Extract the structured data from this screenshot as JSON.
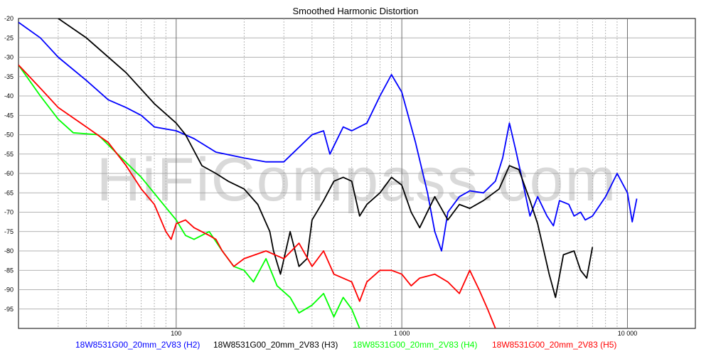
{
  "chart_data": {
    "type": "line",
    "title": "Smoothed Harmonic Distortion",
    "x_scale": "log",
    "xlim": [
      20,
      20000
    ],
    "ylim": [
      -100,
      -20
    ],
    "grid": true,
    "legend_position": "bottom",
    "watermark": "HiFiCompass.com",
    "x_tick_labels": [
      {
        "x": 100,
        "label": "100"
      },
      {
        "x": 1000,
        "label": "1 000"
      },
      {
        "x": 10000,
        "label": "10 000"
      }
    ],
    "y_ticks": [
      -20,
      -25,
      -30,
      -35,
      -40,
      -45,
      -50,
      -55,
      -60,
      -65,
      -70,
      -75,
      -80,
      -85,
      -90,
      -95
    ],
    "series": [
      {
        "name": "18W8531G00_20mm_2V83 (H2)",
        "color": "#0000ff",
        "points": [
          [
            20,
            -21
          ],
          [
            25,
            -25
          ],
          [
            30,
            -30
          ],
          [
            40,
            -36
          ],
          [
            50,
            -41
          ],
          [
            60,
            -43
          ],
          [
            70,
            -45
          ],
          [
            80,
            -48
          ],
          [
            100,
            -49
          ],
          [
            120,
            -51
          ],
          [
            150,
            -54.5
          ],
          [
            200,
            -56
          ],
          [
            250,
            -57
          ],
          [
            300,
            -57
          ],
          [
            400,
            -50
          ],
          [
            450,
            -49
          ],
          [
            480,
            -55
          ],
          [
            550,
            -48
          ],
          [
            600,
            -49
          ],
          [
            700,
            -47
          ],
          [
            800,
            -40
          ],
          [
            900,
            -34.5
          ],
          [
            1000,
            -39
          ],
          [
            1150,
            -52
          ],
          [
            1300,
            -65
          ],
          [
            1400,
            -75
          ],
          [
            1500,
            -80
          ],
          [
            1600,
            -70
          ],
          [
            1800,
            -66
          ],
          [
            2000,
            -64.5
          ],
          [
            2300,
            -65
          ],
          [
            2600,
            -62
          ],
          [
            2800,
            -56
          ],
          [
            3000,
            -47
          ],
          [
            3200,
            -54
          ],
          [
            3400,
            -61
          ],
          [
            3700,
            -71
          ],
          [
            4000,
            -66
          ],
          [
            4400,
            -71
          ],
          [
            4700,
            -73.5
          ],
          [
            5000,
            -67
          ],
          [
            5500,
            -68
          ],
          [
            5800,
            -71
          ],
          [
            6200,
            -70
          ],
          [
            6500,
            -72
          ],
          [
            7000,
            -71
          ],
          [
            8000,
            -66
          ],
          [
            9000,
            -60
          ],
          [
            10000,
            -65
          ],
          [
            10500,
            -72.5
          ],
          [
            11000,
            -66.5
          ]
        ]
      },
      {
        "name": "18W8531G00_20mm_2V83 (H3)",
        "color": "#000000",
        "points": [
          [
            30,
            -20
          ],
          [
            40,
            -25
          ],
          [
            60,
            -34
          ],
          [
            80,
            -42
          ],
          [
            100,
            -47
          ],
          [
            110,
            -50
          ],
          [
            130,
            -58
          ],
          [
            150,
            -60
          ],
          [
            170,
            -62
          ],
          [
            200,
            -64
          ],
          [
            230,
            -68
          ],
          [
            260,
            -75
          ],
          [
            270,
            -80
          ],
          [
            290,
            -86
          ],
          [
            320,
            -75
          ],
          [
            350,
            -84
          ],
          [
            380,
            -82
          ],
          [
            400,
            -72
          ],
          [
            450,
            -67
          ],
          [
            500,
            -62
          ],
          [
            550,
            -61
          ],
          [
            600,
            -62
          ],
          [
            650,
            -71
          ],
          [
            700,
            -68
          ],
          [
            800,
            -65
          ],
          [
            900,
            -61
          ],
          [
            1000,
            -63
          ],
          [
            1100,
            -70
          ],
          [
            1200,
            -74
          ],
          [
            1400,
            -66
          ],
          [
            1600,
            -72
          ],
          [
            1800,
            -68
          ],
          [
            2000,
            -69
          ],
          [
            2300,
            -67
          ],
          [
            2700,
            -64
          ],
          [
            3000,
            -58
          ],
          [
            3300,
            -59
          ],
          [
            3700,
            -67
          ],
          [
            4000,
            -73
          ],
          [
            4500,
            -86
          ],
          [
            4800,
            -92
          ],
          [
            5200,
            -81
          ],
          [
            5800,
            -80
          ],
          [
            6200,
            -85
          ],
          [
            6600,
            -87
          ],
          [
            7000,
            -79
          ]
        ]
      },
      {
        "name": "18W8531G00_20mm_2V83 (H4)",
        "color": "#00ff00",
        "points": [
          [
            20,
            -32
          ],
          [
            25,
            -40
          ],
          [
            30,
            -46
          ],
          [
            35,
            -49.5
          ],
          [
            45,
            -50
          ],
          [
            55,
            -55
          ],
          [
            70,
            -61
          ],
          [
            85,
            -67
          ],
          [
            100,
            -72
          ],
          [
            110,
            -76
          ],
          [
            120,
            -77
          ],
          [
            140,
            -75
          ],
          [
            160,
            -80
          ],
          [
            180,
            -84
          ],
          [
            200,
            -85
          ],
          [
            220,
            -88
          ],
          [
            250,
            -82
          ],
          [
            280,
            -89
          ],
          [
            320,
            -92
          ],
          [
            350,
            -96
          ],
          [
            400,
            -94
          ],
          [
            450,
            -91
          ],
          [
            500,
            -97
          ],
          [
            550,
            -92
          ],
          [
            600,
            -95
          ],
          [
            650,
            -100
          ]
        ]
      },
      {
        "name": "18W8531G00_20mm_2V83 (H5)",
        "color": "#ff0000",
        "points": [
          [
            20,
            -32
          ],
          [
            25,
            -38
          ],
          [
            30,
            -43
          ],
          [
            40,
            -48
          ],
          [
            50,
            -52
          ],
          [
            60,
            -58
          ],
          [
            70,
            -64
          ],
          [
            80,
            -68
          ],
          [
            90,
            -75
          ],
          [
            95,
            -77
          ],
          [
            100,
            -73
          ],
          [
            110,
            -72
          ],
          [
            120,
            -74
          ],
          [
            140,
            -76
          ],
          [
            150,
            -77
          ],
          [
            160,
            -80
          ],
          [
            180,
            -84
          ],
          [
            200,
            -82
          ],
          [
            250,
            -80
          ],
          [
            300,
            -82
          ],
          [
            350,
            -78
          ],
          [
            400,
            -84
          ],
          [
            450,
            -80
          ],
          [
            500,
            -86
          ],
          [
            600,
            -88
          ],
          [
            650,
            -93
          ],
          [
            700,
            -88
          ],
          [
            800,
            -85
          ],
          [
            900,
            -85
          ],
          [
            1000,
            -86
          ],
          [
            1100,
            -89
          ],
          [
            1200,
            -87
          ],
          [
            1400,
            -86
          ],
          [
            1600,
            -88
          ],
          [
            1800,
            -91
          ],
          [
            2000,
            -85
          ],
          [
            2200,
            -90
          ],
          [
            2400,
            -95
          ],
          [
            2600,
            -100
          ]
        ]
      }
    ]
  }
}
